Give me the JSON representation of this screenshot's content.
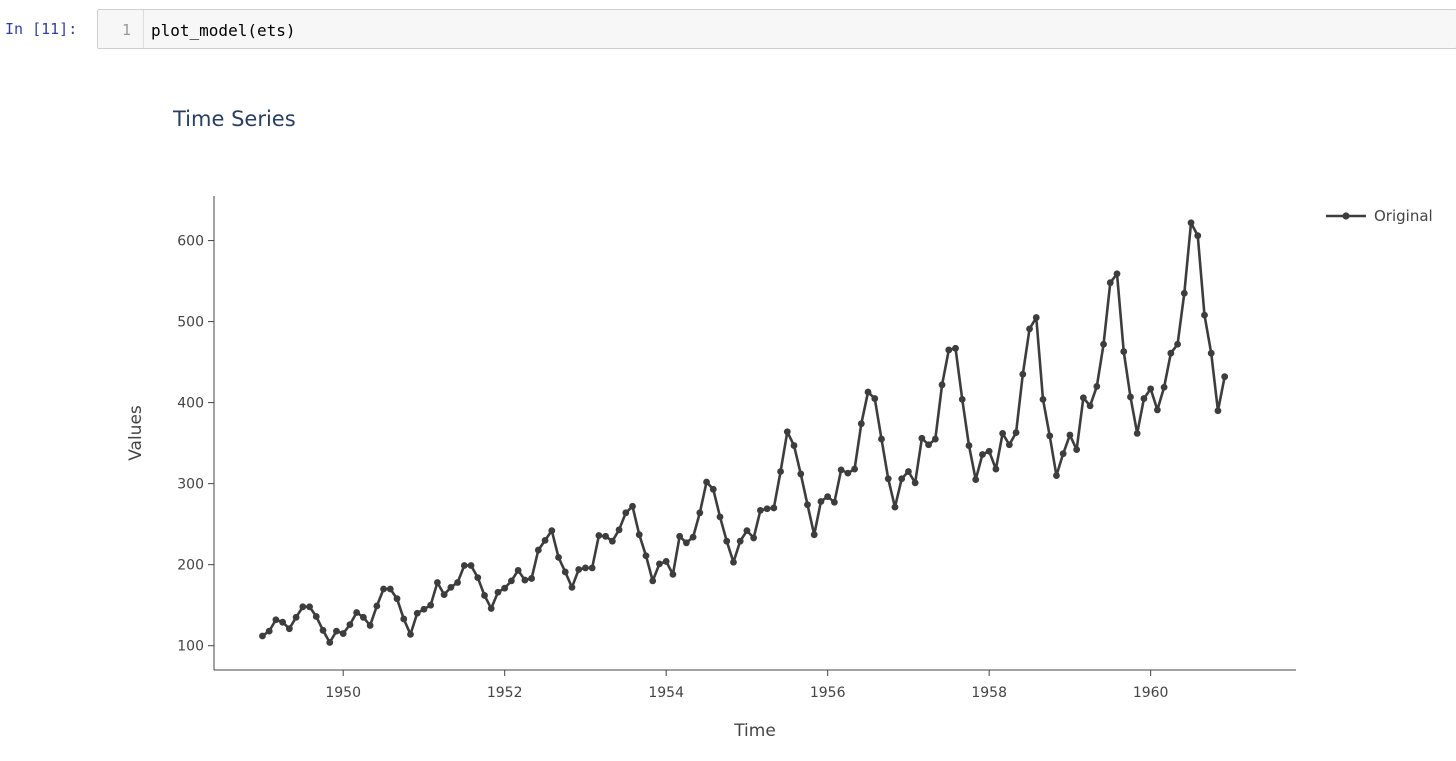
{
  "cell": {
    "prompt": "In [11]:",
    "line_number": "1",
    "code": "plot_model(ets)"
  },
  "colors": {
    "series": "#3d3d3d",
    "prompt": "#303f9f",
    "axis": "#444444"
  },
  "chart_data": {
    "type": "line",
    "title": "Time Series",
    "xlabel": "Time",
    "ylabel": "Values",
    "x_start": "1949-01",
    "x_frequency": "monthly",
    "xlim": [
      1948.4,
      1961.8
    ],
    "ylim": [
      70,
      655
    ],
    "x_ticks": [
      "1950",
      "1952",
      "1954",
      "1956",
      "1958",
      "1960"
    ],
    "y_ticks": [
      "100",
      "200",
      "300",
      "400",
      "500",
      "600"
    ],
    "legend_position": "top-right",
    "grid": false,
    "series": [
      {
        "name": "Original",
        "values": [
          112,
          118,
          132,
          129,
          121,
          135,
          148,
          148,
          136,
          119,
          104,
          118,
          115,
          126,
          141,
          135,
          125,
          149,
          170,
          170,
          158,
          133,
          114,
          140,
          145,
          150,
          178,
          163,
          172,
          178,
          199,
          199,
          184,
          162,
          146,
          166,
          171,
          180,
          193,
          181,
          183,
          218,
          230,
          242,
          209,
          191,
          172,
          194,
          196,
          196,
          236,
          235,
          229,
          243,
          264,
          272,
          237,
          211,
          180,
          201,
          204,
          188,
          235,
          227,
          234,
          264,
          302,
          293,
          259,
          229,
          203,
          229,
          242,
          233,
          267,
          269,
          270,
          315,
          364,
          347,
          312,
          274,
          237,
          278,
          284,
          277,
          317,
          313,
          318,
          374,
          413,
          405,
          355,
          306,
          271,
          306,
          315,
          301,
          356,
          348,
          355,
          422,
          465,
          467,
          404,
          347,
          305,
          336,
          340,
          318,
          362,
          348,
          363,
          435,
          491,
          505,
          404,
          359,
          310,
          337,
          360,
          342,
          406,
          396,
          420,
          472,
          548,
          559,
          463,
          407,
          362,
          405,
          417,
          391,
          419,
          461,
          472,
          535,
          622,
          606,
          508,
          461,
          390,
          432
        ]
      }
    ]
  }
}
